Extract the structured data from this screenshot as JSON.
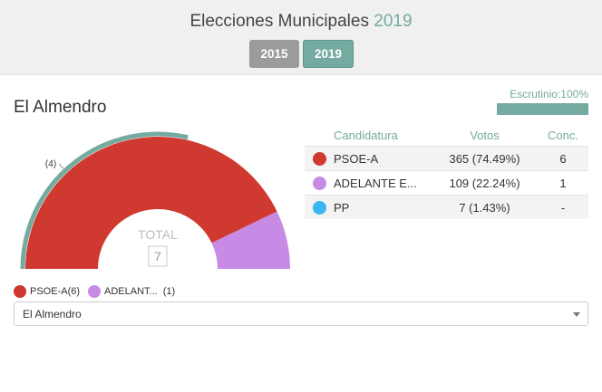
{
  "header": {
    "title": "Elecciones Municipales",
    "title_year": "2019",
    "buttons": [
      {
        "label": "2015",
        "active": false
      },
      {
        "label": "2019",
        "active": true
      }
    ]
  },
  "municipality": "El Almendro",
  "scrutiny": {
    "label": "Escrutinio:100%",
    "percent": 100
  },
  "table": {
    "headers": {
      "candidature": "Candidatura",
      "votes": "Votos",
      "seats": "Conc."
    },
    "rows": [
      {
        "name": "PSOE-A",
        "votes": "365 (74.49%)",
        "seats": "6",
        "color": "#d0392f"
      },
      {
        "name": "ADELANTE E...",
        "votes": "109 (22.24%)",
        "seats": "1",
        "color": "#c78be6"
      },
      {
        "name": "PP",
        "votes": "7 (1.43%)",
        "seats": "-",
        "color": "#3ab7f0"
      }
    ]
  },
  "chart_data": {
    "type": "pie",
    "total_label": "TOTAL",
    "total_value": "7",
    "majority_label": "(4)",
    "majority_seats": 4,
    "slices": [
      {
        "name": "PSOE-A",
        "value": 6,
        "color": "#d0392f"
      },
      {
        "name": "ADELANT...",
        "value": 1,
        "color": "#c78be6"
      }
    ],
    "majority_arc_color": "#74aaa0"
  },
  "legend": [
    {
      "name": "PSOE-A",
      "seats": "(6)",
      "color": "#d0392f"
    },
    {
      "name": "ADELANT...",
      "seats": "(1)",
      "color": "#c78be6"
    }
  ],
  "select": {
    "value": "El Almendro"
  }
}
